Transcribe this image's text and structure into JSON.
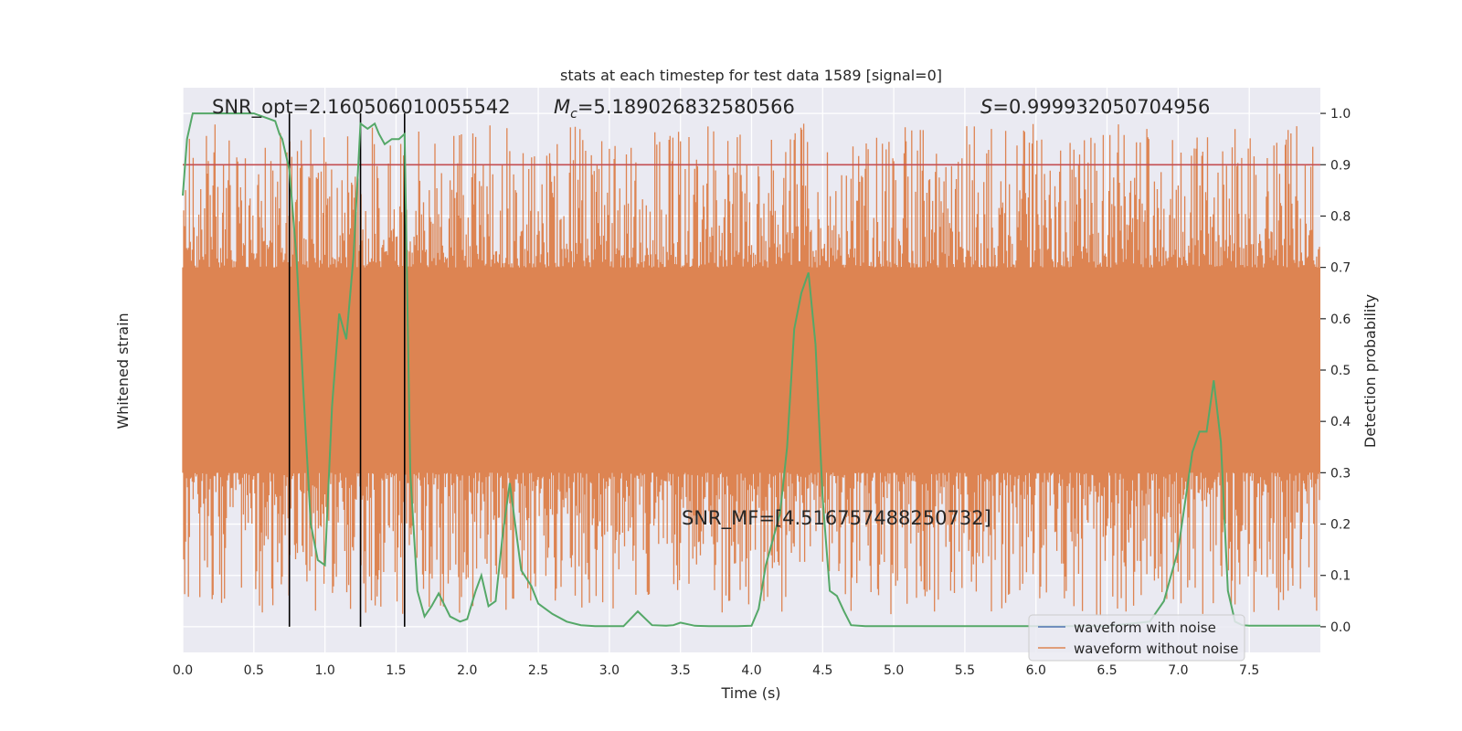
{
  "chart_data": {
    "type": "line",
    "title": "stats at each timestep for test data 1589 [signal=0]",
    "xlabel": "Time (s)",
    "ylabel_left": "Whitened strain",
    "ylabel_right": "Detection probability",
    "xlim": [
      0,
      8.0
    ],
    "ylim_right": [
      -0.05,
      1.05
    ],
    "x_ticks": [
      "0.0",
      "0.5",
      "1.0",
      "1.5",
      "2.0",
      "2.5",
      "3.0",
      "3.5",
      "4.0",
      "4.5",
      "5.0",
      "5.5",
      "6.0",
      "6.5",
      "7.0",
      "7.5"
    ],
    "y_ticks_right": [
      "0.0",
      "0.1",
      "0.2",
      "0.3",
      "0.4",
      "0.5",
      "0.6",
      "0.7",
      "0.8",
      "0.9",
      "1.0"
    ],
    "grid": true,
    "annotations": {
      "snr_opt": "SNR_opt=2.160506010055542",
      "mc": "=5.189026832580566",
      "s": "=0.999932050704956",
      "snr_mf": "SNR_MF=[4.516757488250732]"
    },
    "threshold": 0.9,
    "vlines": [
      0.75,
      1.25,
      1.56
    ],
    "legend": {
      "placement": "lower right",
      "entries": [
        {
          "label": "waveform with noise",
          "color": "#4c72b0"
        },
        {
          "label": "waveform without noise",
          "color": "#dd8452"
        }
      ]
    },
    "series": [
      {
        "name": "Detection probability",
        "color": "#55a868",
        "x": [
          0.0,
          0.03,
          0.07,
          0.1,
          0.15,
          0.2,
          0.3,
          0.4,
          0.5,
          0.6,
          0.65,
          0.68,
          0.7,
          0.75,
          0.8,
          0.85,
          0.9,
          0.95,
          1.0,
          1.05,
          1.1,
          1.15,
          1.2,
          1.25,
          1.3,
          1.35,
          1.38,
          1.42,
          1.47,
          1.52,
          1.56,
          1.6,
          1.65,
          1.7,
          1.75,
          1.8,
          1.88,
          1.95,
          2.0,
          2.06,
          2.1,
          2.15,
          2.2,
          2.25,
          2.3,
          2.38,
          2.45,
          2.5,
          2.6,
          2.7,
          2.8,
          2.9,
          3.0,
          3.1,
          3.2,
          3.3,
          3.4,
          3.45,
          3.5,
          3.6,
          3.7,
          3.9,
          4.0,
          4.05,
          4.1,
          4.2,
          4.25,
          4.3,
          4.35,
          4.4,
          4.45,
          4.5,
          4.55,
          4.6,
          4.65,
          4.7,
          4.8,
          4.9,
          5.0,
          5.5,
          6.0,
          6.5,
          6.8,
          6.9,
          7.0,
          7.1,
          7.15,
          7.2,
          7.25,
          7.3,
          7.35,
          7.4,
          7.45,
          7.5,
          8.0
        ],
        "values": [
          0.84,
          0.95,
          1.0,
          1.0,
          1.0,
          1.0,
          1.0,
          1.0,
          1.0,
          0.99,
          0.985,
          0.96,
          0.95,
          0.89,
          0.72,
          0.45,
          0.2,
          0.13,
          0.12,
          0.43,
          0.61,
          0.56,
          0.72,
          0.98,
          0.97,
          0.98,
          0.96,
          0.94,
          0.95,
          0.95,
          0.96,
          0.3,
          0.07,
          0.02,
          0.04,
          0.065,
          0.02,
          0.01,
          0.015,
          0.07,
          0.1,
          0.04,
          0.05,
          0.18,
          0.28,
          0.11,
          0.08,
          0.045,
          0.025,
          0.01,
          0.003,
          0.001,
          0.001,
          0.001,
          0.03,
          0.003,
          0.002,
          0.003,
          0.008,
          0.002,
          0.001,
          0.001,
          0.002,
          0.035,
          0.12,
          0.22,
          0.35,
          0.58,
          0.65,
          0.69,
          0.55,
          0.25,
          0.07,
          0.06,
          0.03,
          0.003,
          0.001,
          0.001,
          0.001,
          0.001,
          0.001,
          0.001,
          0.01,
          0.05,
          0.15,
          0.34,
          0.38,
          0.38,
          0.48,
          0.36,
          0.07,
          0.01,
          0.003,
          0.002,
          0.002
        ]
      },
      {
        "name": "waveform without noise",
        "color": "#dd8452",
        "band_center": 0.5,
        "band_core_halfwidth": 0.2,
        "band_spike_max": 0.48,
        "samples": 1200
      }
    ]
  }
}
